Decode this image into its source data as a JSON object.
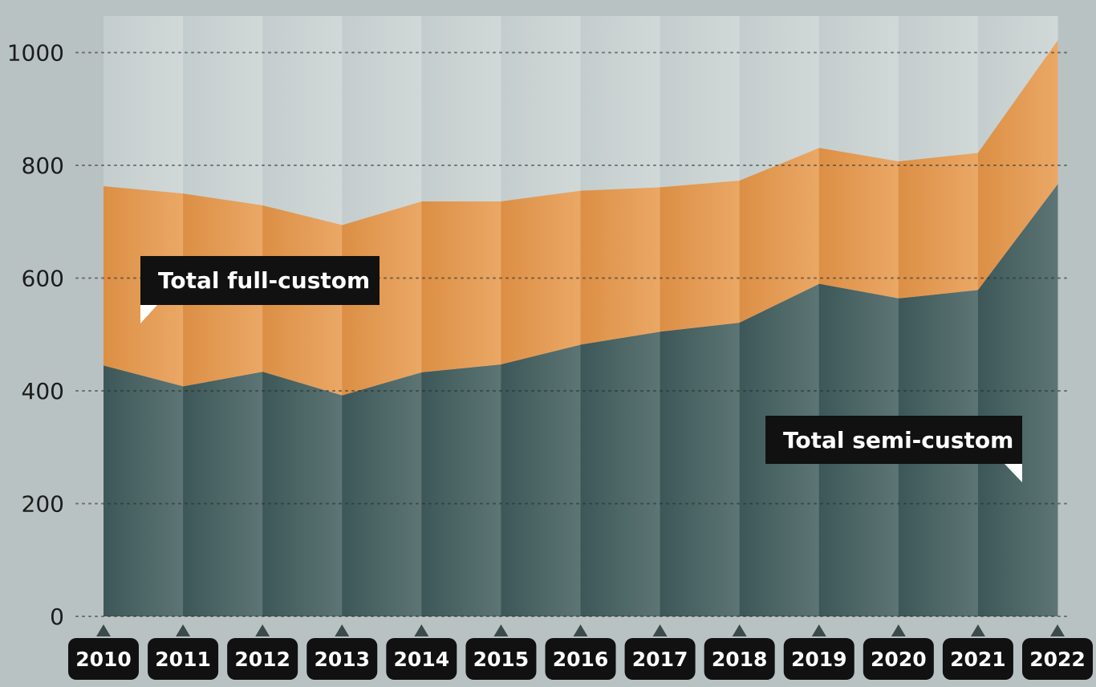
{
  "chart_data": {
    "type": "area",
    "stacked": true,
    "categories": [
      "2010",
      "2011",
      "2012",
      "2013",
      "2014",
      "2015",
      "2016",
      "2017",
      "2018",
      "2019",
      "2020",
      "2021",
      "2022"
    ],
    "series": [
      {
        "name": "Total semi-custom",
        "values": [
          445,
          408,
          434,
          392,
          433,
          447,
          482,
          505,
          521,
          590,
          564,
          579,
          767
        ]
      },
      {
        "name": "Total full-custom",
        "values": [
          318,
          342,
          295,
          302,
          303,
          289,
          273,
          256,
          252,
          241,
          243,
          243,
          255
        ]
      }
    ],
    "totals": [
      763,
      750,
      729,
      694,
      736,
      736,
      755,
      761,
      773,
      831,
      807,
      822,
      1022
    ],
    "yticks": [
      "0",
      "200",
      "400",
      "600",
      "800",
      "1000"
    ],
    "ylim": [
      0,
      1060
    ],
    "grid": "horizontal dotted",
    "colors": {
      "semi_custom": "#4a6465",
      "full_custom": "#e39a52",
      "background_panel": "#c9d2d2",
      "page_background": "#b9c2c3",
      "label_box": "#111111",
      "label_text": "#ffffff"
    },
    "annotations": [
      {
        "text": "Total full-custom",
        "series": "Total full-custom"
      },
      {
        "text": "Total semi-custom",
        "series": "Total semi-custom"
      }
    ]
  }
}
